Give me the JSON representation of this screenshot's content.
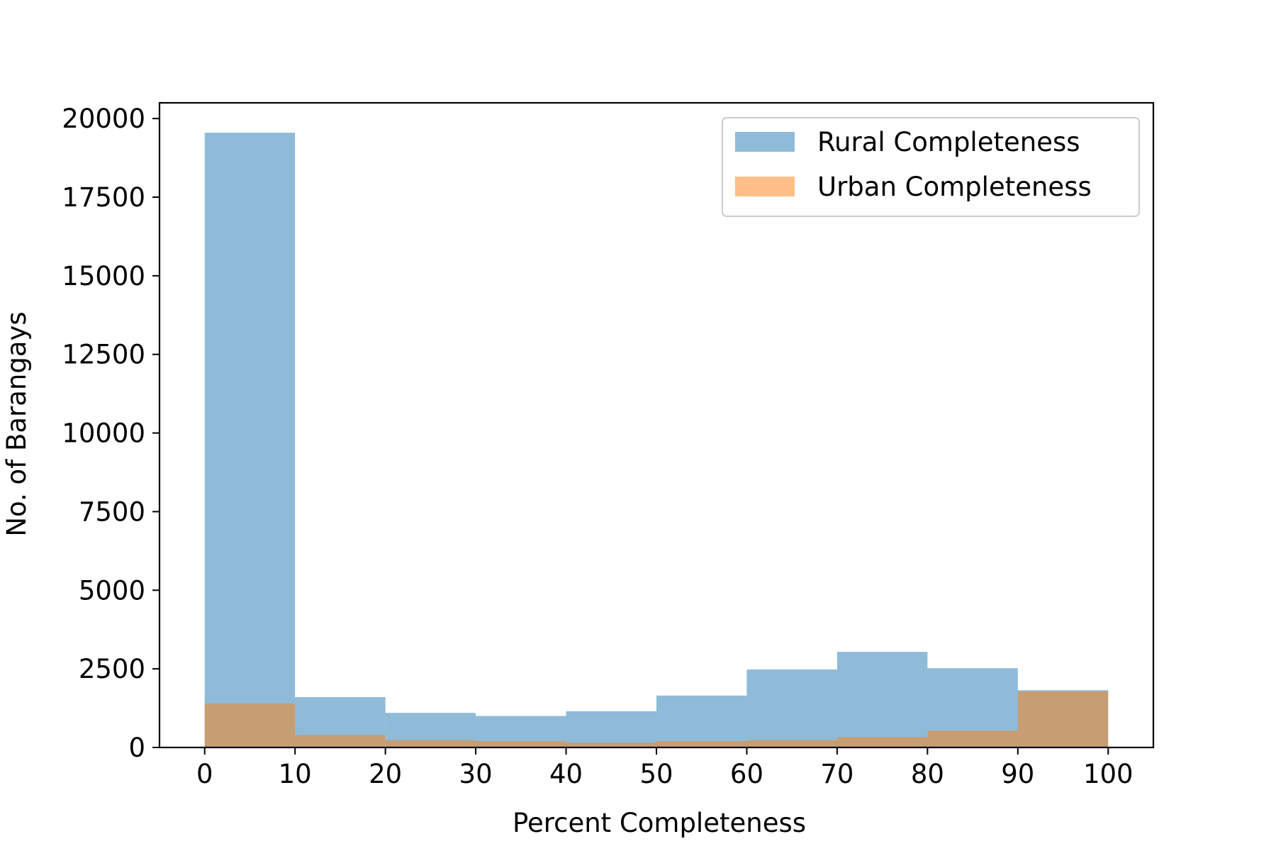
{
  "chart_data": {
    "type": "histogram",
    "xlabel": "Percent Completeness",
    "ylabel": "No. of Barangays",
    "xlim": [
      -5,
      105
    ],
    "ylim": [
      0,
      20500
    ],
    "xticks": [
      0,
      10,
      20,
      30,
      40,
      50,
      60,
      70,
      80,
      90,
      100
    ],
    "yticks": [
      0,
      2500,
      5000,
      7500,
      10000,
      12500,
      15000,
      17500,
      20000
    ],
    "bin_edges": [
      0,
      10,
      20,
      30,
      40,
      50,
      60,
      70,
      80,
      90,
      100
    ],
    "series": [
      {
        "name": "Rural Completeness",
        "color": "#1f77b4",
        "opacity": 0.5,
        "values": [
          19550,
          1600,
          1100,
          1000,
          1150,
          1650,
          2480,
          3040,
          2520,
          1820
        ]
      },
      {
        "name": "Urban Completeness",
        "color": "#ff7f0e",
        "opacity": 0.5,
        "values": [
          1400,
          400,
          230,
          200,
          150,
          200,
          230,
          330,
          540,
          1780
        ]
      }
    ],
    "legend": {
      "position": "top-right"
    },
    "grid": false
  }
}
